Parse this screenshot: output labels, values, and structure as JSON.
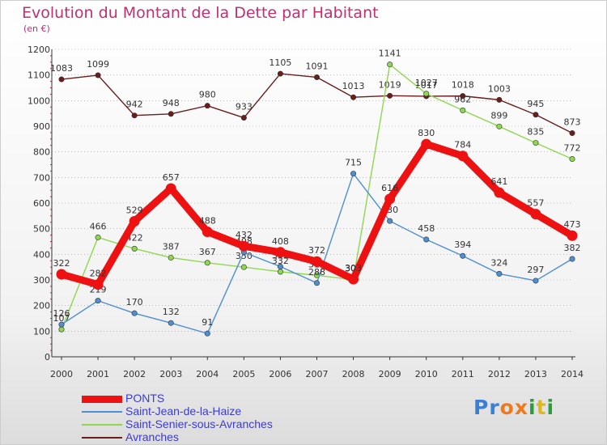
{
  "chart_data": {
    "type": "line",
    "title": "Evolution du Montant de la Dette par Habitant",
    "subtitle": "(en €)",
    "categories": [
      "2000",
      "2001",
      "2002",
      "2003",
      "2004",
      "2005",
      "2006",
      "2007",
      "2008",
      "2009",
      "2010",
      "2011",
      "2012",
      "2013",
      "2014"
    ],
    "y_ticks": [
      "0",
      "100",
      "200",
      "300",
      "400",
      "500",
      "600",
      "700",
      "800",
      "900",
      "1000",
      "1100",
      "1200"
    ],
    "ylim": [
      0,
      1200
    ],
    "grid": "horizontal dotted",
    "legend_position": "bottom-left",
    "series": [
      {
        "name": "Avranches",
        "color": "#6b1c1c",
        "values": [
          1083,
          1099,
          942,
          948,
          980,
          933,
          1105,
          1091,
          1013,
          1019,
          1017,
          1018,
          1003,
          945,
          873
        ],
        "labels": [
          "1083",
          "1099",
          "942",
          "948",
          "980",
          "933",
          "1105",
          "1091",
          "1013",
          "1019",
          "1017",
          "1018",
          "1003",
          "945",
          "873"
        ]
      },
      {
        "name": "Saint-Senier-sous-Avranches",
        "color": "#8ed84f",
        "values": [
          107,
          466,
          422,
          387,
          367,
          350,
          332,
          318,
          301,
          1141,
          1027,
          962,
          899,
          835,
          772
        ],
        "labels": [
          "107",
          "466",
          "422",
          "387",
          "367",
          "350",
          "332",
          "318",
          "301",
          "1141",
          "1027",
          "962",
          "899",
          "835",
          "772"
        ]
      },
      {
        "name": "Saint-Jean-de-la-Haize",
        "color": "#4d8fd1",
        "values": [
          126,
          219,
          170,
          132,
          91,
          408,
          352,
          288,
          715,
          530,
          458,
          394,
          324,
          297,
          382
        ],
        "labels": [
          "126",
          "219",
          "170",
          "132",
          "91",
          "408",
          "352",
          "288",
          "715",
          "530",
          "458",
          "394",
          "324",
          "297",
          "382"
        ]
      },
      {
        "name": "PONTS",
        "color": "#ee1111",
        "values": [
          322,
          282,
          529,
          657,
          488,
          432,
          408,
          372,
          303,
          616,
          830,
          784,
          641,
          557,
          473
        ],
        "labels": [
          "322",
          "282",
          "529",
          "657",
          "488",
          "432",
          "408",
          "372",
          "303",
          "616",
          "830",
          "784",
          "641",
          "557",
          "473"
        ]
      }
    ]
  },
  "legend": [
    {
      "label": "PONTS",
      "color": "#ee1111",
      "thickness": 9
    },
    {
      "label": "Saint-Jean-de-la-Haize",
      "color": "#4d8fd1",
      "thickness": 2
    },
    {
      "label": "Saint-Senier-sous-Avranches",
      "color": "#8ed84f",
      "thickness": 2
    },
    {
      "label": "Avranches",
      "color": "#6b1c1c",
      "thickness": 2
    }
  ],
  "logo": {
    "letters": [
      "P",
      "r",
      "o",
      "x",
      "i",
      "t",
      "i"
    ],
    "colors": [
      "#3a7fd5",
      "#3a7fd5",
      "#f07a1b",
      "#f07a1b",
      "#2e9c3a",
      "#e0b81a",
      "#2e9c3a"
    ]
  }
}
